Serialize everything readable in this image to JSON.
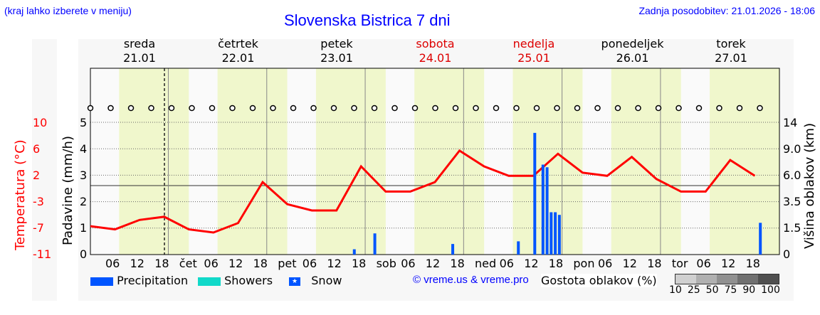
{
  "header": {
    "hint": "(kraj lahko izberete v meniju)",
    "title": "Slovenska Bistrica 7 dni",
    "updated": "Zadnja posodobitev: 21.01.2026 - 18:06"
  },
  "days": [
    {
      "name": "sreda",
      "date": "21.01",
      "weekend": false
    },
    {
      "name": "četrtek",
      "date": "22.01",
      "weekend": false
    },
    {
      "name": "petek",
      "date": "23.01",
      "weekend": false
    },
    {
      "name": "sobota",
      "date": "24.01",
      "weekend": true
    },
    {
      "name": "nedelja",
      "date": "25.01",
      "weekend": true
    },
    {
      "name": "ponedeljek",
      "date": "26.01",
      "weekend": false
    },
    {
      "name": "torek",
      "date": "27.01",
      "weekend": false
    }
  ],
  "axes": {
    "temp_label": "Temperatura (°C)",
    "temp_ticks": [
      "10",
      "6",
      "2",
      "-3",
      "-7",
      "-11"
    ],
    "precip_label": "Padavine (mm/h)",
    "precip_ticks": [
      "5",
      "4",
      "3",
      "2",
      "1",
      "0"
    ],
    "cloud_label": "Višina oblakov (km)",
    "cloud_ticks": [
      "14",
      "9.0",
      "6.0",
      "3.5",
      "1.5",
      "0"
    ],
    "x_ticks": [
      "06",
      "12",
      "18",
      "čet",
      "06",
      "12",
      "18",
      "pet",
      "06",
      "12",
      "18",
      "sob",
      "06",
      "12",
      "18",
      "ned",
      "06",
      "12",
      "18",
      "pon",
      "06",
      "12",
      "18",
      "tor",
      "06",
      "12",
      "18"
    ]
  },
  "legend": {
    "precipitation": "Precipitation",
    "showers": "Showers",
    "snow": "Snow",
    "credit": "© vreme.us & vreme.pro",
    "density_title": "Gostota oblakov (%)",
    "density_ticks": [
      "10",
      "25",
      "50",
      "75",
      "90",
      "100"
    ]
  },
  "colors": {
    "temp": "#ff0000",
    "precip": "#0055ff",
    "showers": "#11d9c9",
    "daylight": "#f0f7cc",
    "title": "#0000ff"
  },
  "chart_data": {
    "type": "line",
    "title": "Slovenska Bistrica 7 dni",
    "series": [
      {
        "name": "Temperatura (°C)",
        "x_hours": [
          0,
          6,
          12,
          18,
          24,
          30,
          36,
          42,
          48,
          54,
          60,
          66,
          72,
          78,
          84,
          90,
          96,
          102,
          108,
          114,
          120,
          126,
          132,
          138,
          144,
          150,
          156,
          162
        ],
        "values": [
          -6.5,
          -7,
          -5.5,
          -5,
          -7,
          -7.5,
          -6,
          0.5,
          -3,
          -4,
          -4,
          3,
          -1,
          -1,
          0.5,
          5.5,
          3,
          1.5,
          1.5,
          5,
          2,
          1.5,
          4.5,
          1,
          -1,
          -1,
          4,
          1.5
        ]
      },
      {
        "name": "Precipitation (mm/h)",
        "x_hours": [
          64,
          69,
          88,
          104,
          108,
          110,
          111,
          112,
          113,
          114,
          163
        ],
        "values": [
          0.2,
          0.8,
          0.4,
          0.5,
          4.6,
          3.4,
          3.3,
          1.6,
          1.6,
          1.5,
          1.2
        ]
      }
    ],
    "temp_labels": [
      -7,
      -5,
      -7,
      0,
      -4,
      3,
      -1,
      5,
      1,
      5,
      1,
      4,
      -1,
      4,
      1
    ],
    "xlabel": "",
    "ylabel": "Padavine (mm/h)",
    "ylim": [
      0,
      5
    ]
  }
}
